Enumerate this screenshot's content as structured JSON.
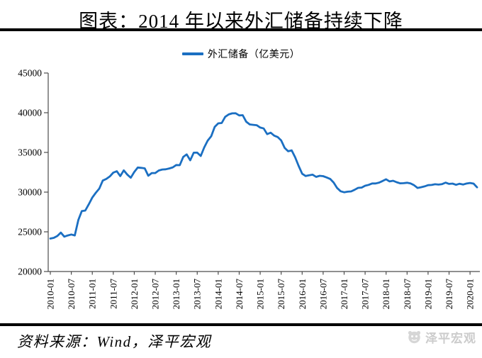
{
  "header": {
    "title": "图表：2014 年以来外汇储备持续下降"
  },
  "footer": {
    "source": "资料来源：Wind，泽平宏观",
    "watermark": "泽平宏观"
  },
  "chart_data": {
    "type": "line",
    "title": "",
    "xlabel": "",
    "ylabel": "",
    "grid": false,
    "background": "#ffffff",
    "axis_color": "#4d4d4d",
    "legend_position": "top-center",
    "ylim": [
      20000,
      45000
    ],
    "y_ticks": [
      20000,
      25000,
      30000,
      35000,
      40000,
      45000
    ],
    "x_tick_every_n_points": 6,
    "x_tick_labels": [
      "2010-01",
      "2010-07",
      "2011-01",
      "2011-07",
      "2012-01",
      "2012-07",
      "2013-01",
      "2013-07",
      "2014-01",
      "2014-07",
      "2015-01",
      "2015-07",
      "2016-01",
      "2016-07",
      "2017-01",
      "2017-07",
      "2018-01",
      "2018-07",
      "2019-01",
      "2019-07",
      "2020-01"
    ],
    "series": [
      {
        "name": "外汇储备（亿美元）",
        "color": "#1b6fc2",
        "frequency": "monthly",
        "x_start": "2010-01",
        "x_end": "2020-03",
        "values": [
          24152,
          24245,
          24471,
          24906,
          24396,
          24543,
          24658,
          24547,
          26483,
          27609,
          27679,
          28473,
          29316,
          29914,
          30447,
          31458,
          31660,
          31975,
          32452,
          32625,
          32017,
          32738,
          32209,
          31811,
          32536,
          33098,
          33050,
          32989,
          32062,
          32400,
          32400,
          32726,
          32851,
          32871,
          32979,
          33116,
          33410,
          33395,
          34426,
          34749,
          34008,
          34967,
          34976,
          34557,
          35626,
          36482,
          37049,
          38213,
          38662,
          38701,
          39480,
          39789,
          39917,
          39932,
          39665,
          39689,
          38877,
          38528,
          38475,
          38430,
          38134,
          38015,
          37300,
          37481,
          37112,
          36938,
          36513,
          35573,
          35141,
          35255,
          34383,
          33304,
          32309,
          32023,
          32126,
          32197,
          31917,
          32052,
          32011,
          31852,
          31664,
          31207,
          30516,
          30105,
          29982,
          30051,
          30091,
          30295,
          30536,
          30568,
          30807,
          30915,
          31085,
          31092,
          31193,
          31399,
          31615,
          31345,
          31428,
          31249,
          31106,
          31121,
          31179,
          31097,
          30870,
          30531,
          30617,
          30727,
          30879,
          30902,
          30988,
          30950,
          31010,
          31192,
          31037,
          31072,
          30924,
          31052,
          30956,
          31079,
          31155,
          31067,
          30606
        ]
      }
    ]
  }
}
